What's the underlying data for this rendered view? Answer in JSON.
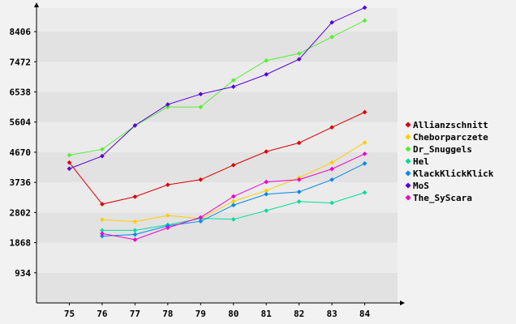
{
  "chart_data": {
    "type": "line",
    "title": "",
    "xlabel": "",
    "ylabel": "",
    "x": [
      75,
      76,
      77,
      78,
      79,
      80,
      81,
      82,
      83,
      84
    ],
    "xlim": [
      74,
      85
    ],
    "ylim": [
      0,
      9135
    ],
    "yticks": [
      934,
      1868,
      2802,
      3736,
      4670,
      5604,
      6538,
      7472,
      8406
    ],
    "grid": "horizontal alternating bands",
    "legend": "right",
    "series": [
      {
        "name": "Allianzschnitt",
        "color": "#dd0000",
        "values": [
          4350,
          3060,
          3290,
          3660,
          3820,
          4270,
          4690,
          4960,
          5440,
          5910
        ]
      },
      {
        "name": "Cheborparczete",
        "color": "#ffcc00",
        "values": [
          null,
          2580,
          2520,
          2710,
          2610,
          3150,
          3480,
          3880,
          4350,
          4970
        ]
      },
      {
        "name": "Dr_Snuggels",
        "color": "#55ee33",
        "values": [
          4580,
          4760,
          5490,
          6070,
          6070,
          6900,
          7510,
          7730,
          8240,
          8750
        ]
      },
      {
        "name": "Hel",
        "color": "#00dd99",
        "values": [
          null,
          2250,
          2250,
          2420,
          2620,
          2590,
          2860,
          3140,
          3100,
          3420
        ]
      },
      {
        "name": "KlackKlickKlick",
        "color": "#0088ee",
        "values": [
          null,
          2070,
          2120,
          2390,
          2530,
          3030,
          3370,
          3440,
          3820,
          4320
        ]
      },
      {
        "name": "MoS",
        "color": "#5500dd",
        "values": [
          4160,
          4550,
          5500,
          6150,
          6470,
          6700,
          7080,
          7550,
          8690,
          9150
        ]
      },
      {
        "name": "The_SyScara",
        "color": "#ee00cc",
        "values": [
          null,
          2150,
          1960,
          2330,
          2650,
          3300,
          3750,
          3820,
          4150,
          4620
        ]
      }
    ]
  }
}
